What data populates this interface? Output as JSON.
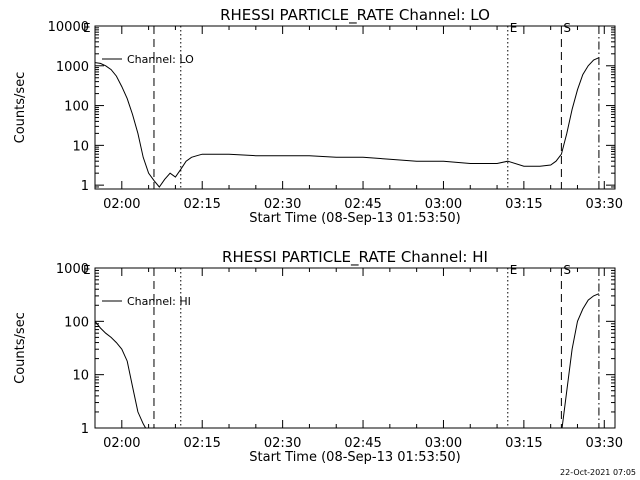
{
  "chart_data": [
    {
      "type": "line",
      "title": "RHESSI PARTICLE_RATE Channel: LO",
      "xlabel": "Start Time (08-Sep-13 01:53:50)",
      "ylabel": "Counts/sec",
      "yscale": "log",
      "xlim": [
        "01:55",
        "03:32"
      ],
      "ylim": [
        0.8,
        10000
      ],
      "x_ticks": [
        "02:00",
        "02:15",
        "02:30",
        "02:45",
        "03:00",
        "03:15",
        "03:30"
      ],
      "y_ticks": [
        "1",
        "10",
        "100",
        "1000",
        "10000"
      ],
      "legend": {
        "placement": "top-left",
        "entries": [
          "Channel: LO"
        ]
      },
      "markers": [
        {
          "time": "02:06",
          "style": "dashed",
          "label": ""
        },
        {
          "time": "02:11",
          "style": "dotted",
          "label": ""
        },
        {
          "time": "03:12",
          "style": "dotted",
          "label": "E"
        },
        {
          "time": "03:22",
          "style": "dashed",
          "label": "S"
        },
        {
          "time": "03:29",
          "style": "dashdot",
          "label": ""
        }
      ],
      "corner_label": "E",
      "series": [
        {
          "name": "Channel: LO",
          "x": [
            "01:55",
            "01:56",
            "01:57",
            "01:58",
            "01:59",
            "02:00",
            "02:01",
            "02:02",
            "02:03",
            "02:04",
            "02:05",
            "02:06",
            "02:07",
            "02:08",
            "02:09",
            "02:10",
            "02:11",
            "02:12",
            "02:13",
            "02:14",
            "02:15",
            "02:20",
            "02:25",
            "02:30",
            "02:35",
            "02:40",
            "02:45",
            "02:50",
            "02:55",
            "03:00",
            "03:05",
            "03:10",
            "03:12",
            "03:15",
            "03:18",
            "03:20",
            "03:21",
            "03:22",
            "03:23",
            "03:24",
            "03:25",
            "03:26",
            "03:27",
            "03:28",
            "03:29"
          ],
          "y": [
            1200,
            1150,
            1000,
            800,
            550,
            300,
            150,
            60,
            20,
            5,
            2,
            1.3,
            0.9,
            1.4,
            2,
            1.6,
            2.5,
            4,
            5,
            5.5,
            6,
            6,
            5.5,
            5.5,
            5.5,
            5,
            5,
            4.5,
            4,
            4,
            3.5,
            3.5,
            4,
            3,
            3,
            3.2,
            4,
            6,
            20,
            80,
            250,
            600,
            1000,
            1400,
            1600
          ]
        }
      ]
    },
    {
      "type": "line",
      "title": "RHESSI PARTICLE_RATE Channel: HI",
      "xlabel": "Start Time (08-Sep-13 01:53:50)",
      "ylabel": "Counts/sec",
      "yscale": "log",
      "xlim": [
        "01:55",
        "03:32"
      ],
      "ylim": [
        1,
        1000
      ],
      "x_ticks": [
        "02:00",
        "02:15",
        "02:30",
        "02:45",
        "03:00",
        "03:15",
        "03:30"
      ],
      "y_ticks": [
        "1",
        "10",
        "100",
        "1000"
      ],
      "legend": {
        "placement": "top-left",
        "entries": [
          "Channel: HI"
        ]
      },
      "markers": [
        {
          "time": "02:06",
          "style": "dashed",
          "label": ""
        },
        {
          "time": "02:11",
          "style": "dotted",
          "label": ""
        },
        {
          "time": "03:12",
          "style": "dotted",
          "label": "E"
        },
        {
          "time": "03:22",
          "style": "dashed",
          "label": "S"
        },
        {
          "time": "03:29",
          "style": "dashdot",
          "label": ""
        }
      ],
      "corner_label": "E",
      "series": [
        {
          "name": "Channel: HI",
          "x": [
            "01:55",
            "01:56",
            "01:57",
            "01:58",
            "01:59",
            "02:00",
            "02:01",
            "02:02",
            "02:03",
            "02:04",
            "02:05",
            "03:22",
            "03:23",
            "03:24",
            "03:25",
            "03:26",
            "03:27",
            "03:28",
            "03:29"
          ],
          "y": [
            100,
            75,
            60,
            50,
            40,
            30,
            18,
            6,
            2,
            1.2,
            0.8,
            0.8,
            5,
            30,
            100,
            170,
            250,
            300,
            330
          ]
        }
      ]
    }
  ],
  "footer": {
    "timestamp": "22-Oct-2021 07:05"
  }
}
